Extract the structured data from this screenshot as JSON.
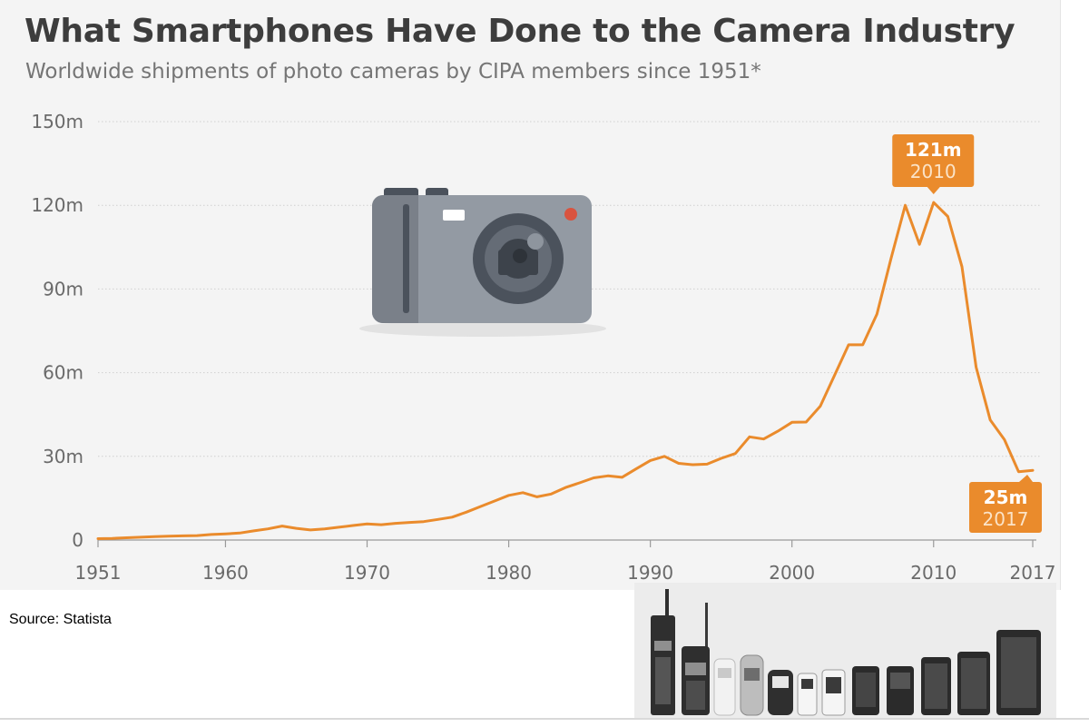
{
  "header": {
    "title": "What Smartphones Have Done to the Camera Industry",
    "subtitle": "Worldwide shipments of photo cameras by CIPA members since 1951*"
  },
  "source": "Source: Statista",
  "colors": {
    "line": "#ea8b2c",
    "callout": "#ea8b2c",
    "grid": "#cfcfcf",
    "panel": "#f4f4f4"
  },
  "icons": {
    "camera": "camera-icon",
    "phones": "mobile-phones-evolution-icons"
  },
  "chart_data": {
    "type": "line",
    "title": "What Smartphones Have Done to the Camera Industry",
    "subtitle": "Worldwide shipments of photo cameras by CIPA members since 1951*",
    "xlabel": "",
    "ylabel": "",
    "unit": "million units",
    "xlim": [
      1951,
      2017
    ],
    "ylim": [
      0,
      150
    ],
    "grid": true,
    "y_ticks": [
      0,
      30,
      60,
      90,
      120,
      150
    ],
    "y_tick_labels": [
      "0",
      "30m",
      "60m",
      "90m",
      "120m",
      "150m"
    ],
    "x_ticks": [
      1951,
      1960,
      1970,
      1980,
      1990,
      2000,
      2010,
      2017
    ],
    "x_tick_labels": [
      "1951",
      "1960",
      "1970",
      "1980",
      "1990",
      "2000",
      "2010",
      "2017"
    ],
    "series": [
      {
        "name": "Camera shipments",
        "x": [
          1951,
          1952,
          1953,
          1954,
          1955,
          1956,
          1957,
          1958,
          1959,
          1960,
          1961,
          1962,
          1963,
          1964,
          1965,
          1966,
          1967,
          1968,
          1969,
          1970,
          1971,
          1972,
          1973,
          1974,
          1975,
          1976,
          1977,
          1978,
          1979,
          1980,
          1981,
          1982,
          1983,
          1984,
          1985,
          1986,
          1987,
          1988,
          1989,
          1990,
          1991,
          1992,
          1993,
          1994,
          1995,
          1996,
          1997,
          1998,
          1999,
          2000,
          2001,
          2002,
          2003,
          2004,
          2005,
          2006,
          2007,
          2008,
          2009,
          2010,
          2011,
          2012,
          2013,
          2014,
          2015,
          2016,
          2017
        ],
        "values": [
          0.5,
          0.6,
          0.8,
          1,
          1.2,
          1.4,
          1.5,
          1.6,
          2,
          2.2,
          2.5,
          3.3,
          4,
          5,
          4.2,
          3.6,
          4,
          4.6,
          5.2,
          5.8,
          5.5,
          6,
          6.3,
          6.6,
          7.4,
          8.2,
          10,
          12,
          14,
          16,
          17,
          15.5,
          16.5,
          18.8,
          20.5,
          22.3,
          23,
          22.5,
          25.5,
          28.5,
          30,
          27.5,
          27,
          27.2,
          29.3,
          31,
          37,
          36.2,
          39,
          42.2,
          42.3,
          48,
          59,
          70,
          70,
          81,
          101,
          120,
          106,
          121,
          116,
          98,
          62,
          43,
          36,
          24.5,
          25
        ]
      }
    ],
    "annotations": [
      {
        "value_label": "121m",
        "year_label": "2010",
        "x": 2010,
        "y": 121
      },
      {
        "value_label": "25m",
        "year_label": "2017",
        "x": 2017,
        "y": 25
      }
    ],
    "footnote_marker": "*"
  }
}
